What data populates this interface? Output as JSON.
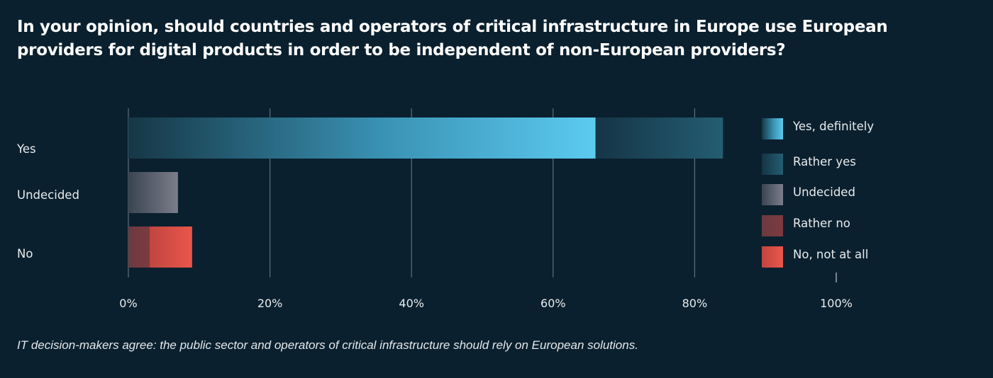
{
  "title": "In your opinion, should countries and operators of critical infrastructure in Europe use European providers for digital products in order to be independent of non-European providers?",
  "caption": "IT decision-makers agree: the public sector and operators of critical infrastructure should rely on European solutions.",
  "chart_data": {
    "type": "bar",
    "orientation": "horizontal",
    "stacked": true,
    "categories": [
      "Yes",
      "Undecided",
      "No"
    ],
    "series": [
      {
        "name": "Yes, definitely",
        "values": [
          66,
          0,
          0
        ],
        "color": "#5ccaf0"
      },
      {
        "name": "Rather yes",
        "values": [
          18,
          0,
          0
        ],
        "color": "#1f5a70"
      },
      {
        "name": "Undecided",
        "values": [
          0,
          7,
          0
        ],
        "color": "#7a7c8b"
      },
      {
        "name": "Rather no",
        "values": [
          0,
          0,
          3
        ],
        "color": "#7d3a40"
      },
      {
        "name": "No, not at all",
        "values": [
          0,
          0,
          6
        ],
        "color": "#e8544a"
      }
    ],
    "xlim": [
      0,
      100
    ],
    "xticks": [
      0,
      20,
      40,
      60,
      80,
      100
    ],
    "xtick_labels": [
      "0%",
      "20%",
      "40%",
      "60%",
      "80%",
      "100%"
    ],
    "grid": true,
    "legend_position": "right"
  }
}
